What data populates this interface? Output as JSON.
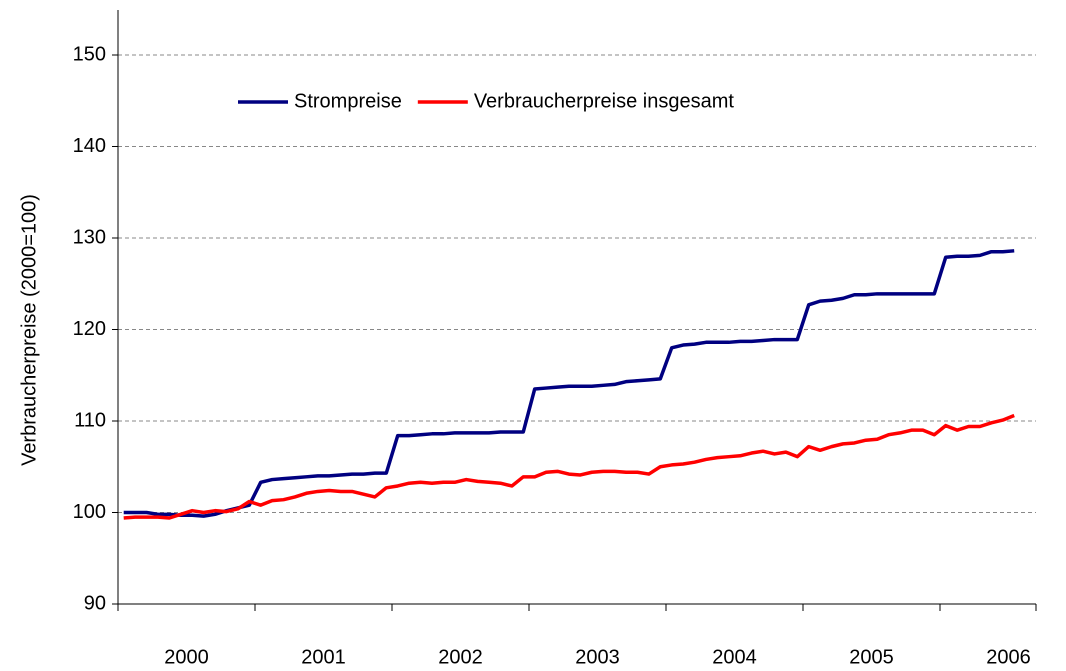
{
  "chart_data": {
    "type": "line",
    "y_label": "Verbraucherpreise (2000=100)",
    "categories": [
      "2000",
      null,
      null,
      null,
      null,
      null,
      null,
      null,
      null,
      null,
      null,
      null,
      "2001",
      null,
      null,
      null,
      null,
      null,
      null,
      null,
      null,
      null,
      null,
      null,
      "2002",
      null,
      null,
      null,
      null,
      null,
      null,
      null,
      null,
      null,
      null,
      null,
      "2003",
      null,
      null,
      null,
      null,
      null,
      null,
      null,
      null,
      null,
      null,
      null,
      "2004",
      null,
      null,
      null,
      null,
      null,
      null,
      null,
      null,
      null,
      null,
      null,
      "2005",
      null,
      null,
      null,
      null,
      null,
      null,
      null,
      null,
      null,
      null,
      null,
      "2006",
      null,
      null,
      null,
      null,
      null,
      null
    ],
    "series": [
      {
        "name": "Strompreise",
        "color": "#000080",
        "values": [
          100.0,
          100.0,
          100.0,
          99.8,
          99.8,
          99.7,
          99.7,
          99.6,
          99.8,
          100.2,
          100.5,
          100.8,
          103.3,
          103.6,
          103.7,
          103.8,
          103.9,
          104.0,
          104.0,
          104.1,
          104.2,
          104.2,
          104.3,
          104.3,
          108.4,
          108.4,
          108.5,
          108.6,
          108.6,
          108.7,
          108.7,
          108.7,
          108.7,
          108.8,
          108.8,
          108.8,
          113.5,
          113.6,
          113.7,
          113.8,
          113.8,
          113.8,
          113.9,
          114.0,
          114.3,
          114.4,
          114.5,
          114.6,
          118.0,
          118.3,
          118.4,
          118.6,
          118.6,
          118.6,
          118.7,
          118.7,
          118.8,
          118.9,
          118.9,
          118.9,
          122.7,
          123.1,
          123.2,
          123.4,
          123.8,
          123.8,
          123.9,
          123.9,
          123.9,
          123.9,
          123.9,
          123.9,
          127.9,
          128.0,
          128.0,
          128.1,
          128.5,
          128.5,
          128.6
        ]
      },
      {
        "name": "Verbraucherpreise insgesamt",
        "color": "#ff0000",
        "values": [
          99.4,
          99.5,
          99.5,
          99.5,
          99.4,
          99.8,
          100.2,
          100.0,
          100.2,
          100.1,
          100.4,
          101.2,
          100.8,
          101.3,
          101.4,
          101.7,
          102.1,
          102.3,
          102.4,
          102.3,
          102.3,
          102.0,
          101.7,
          102.7,
          102.9,
          103.2,
          103.3,
          103.2,
          103.3,
          103.3,
          103.6,
          103.4,
          103.3,
          103.2,
          102.9,
          103.9,
          103.9,
          104.4,
          104.5,
          104.2,
          104.1,
          104.4,
          104.5,
          104.5,
          104.4,
          104.4,
          104.2,
          105.0,
          105.2,
          105.3,
          105.5,
          105.8,
          106.0,
          106.1,
          106.2,
          106.5,
          106.7,
          106.4,
          106.6,
          106.1,
          107.2,
          106.8,
          107.2,
          107.5,
          107.6,
          107.9,
          108.0,
          108.5,
          108.7,
          109.0,
          109.0,
          108.5,
          109.5,
          109.0,
          109.4,
          109.4,
          109.8,
          110.1,
          110.6
        ]
      }
    ],
    "ylim": [
      90,
      150
    ],
    "yticks": [
      90,
      100,
      110,
      120,
      130,
      140,
      150
    ],
    "grid": true,
    "legend": "top"
  }
}
